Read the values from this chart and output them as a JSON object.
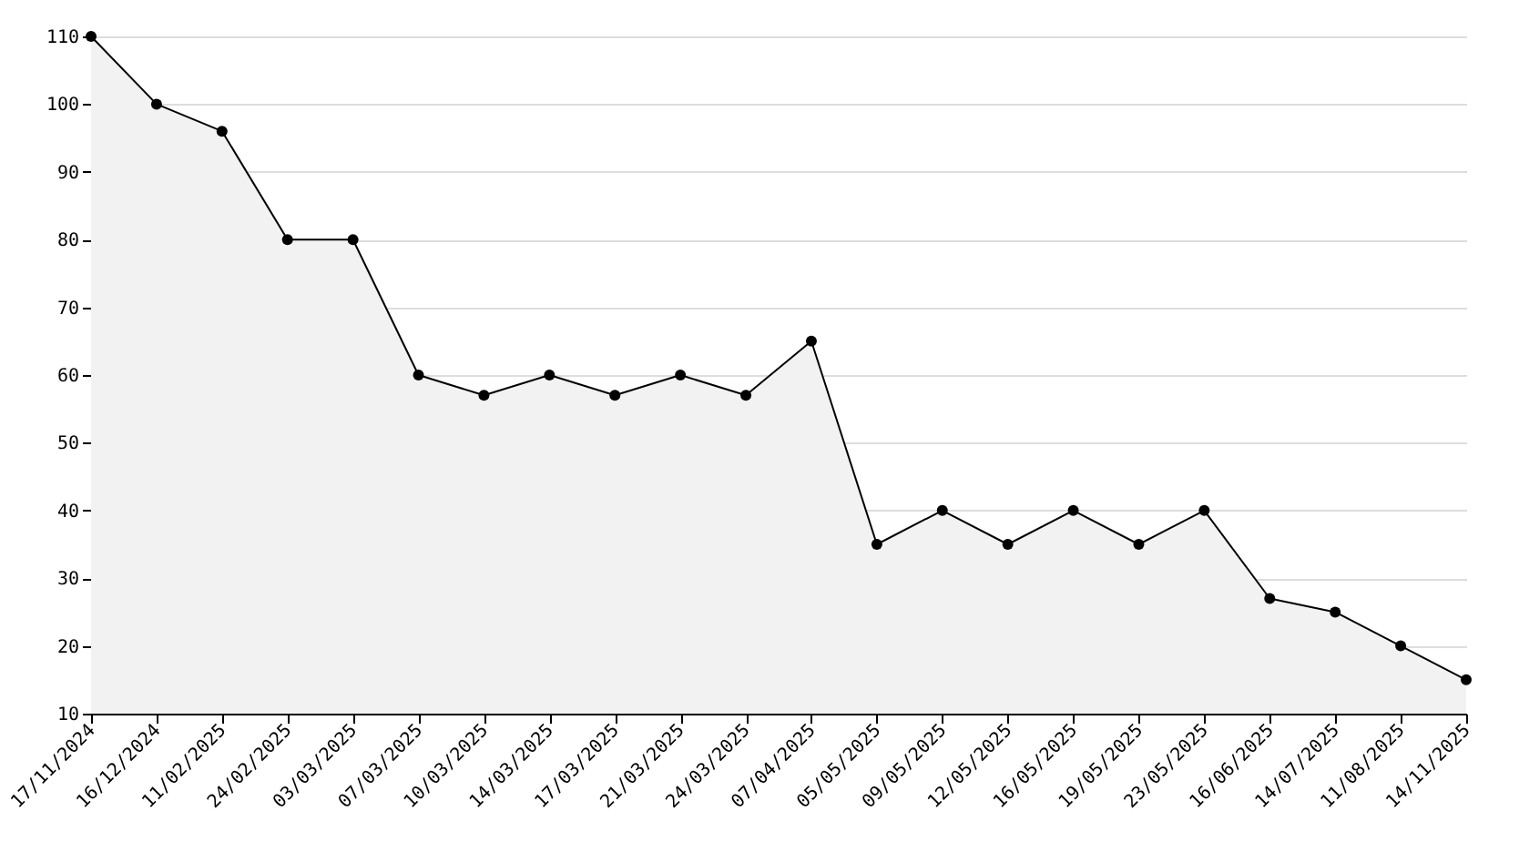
{
  "chart_data": {
    "type": "area",
    "categories": [
      "17/11/2024",
      "16/12/2024",
      "11/02/2025",
      "24/02/2025",
      "03/03/2025",
      "07/03/2025",
      "10/03/2025",
      "14/03/2025",
      "17/03/2025",
      "21/03/2025",
      "24/03/2025",
      "07/04/2025",
      "05/05/2025",
      "09/05/2025",
      "12/05/2025",
      "16/05/2025",
      "19/05/2025",
      "23/05/2025",
      "16/06/2025",
      "14/07/2025",
      "11/08/2025",
      "14/11/2025"
    ],
    "series": [
      {
        "color": "#000000",
        "values": [
          110,
          100,
          96,
          80,
          80,
          60,
          57,
          60,
          57,
          60,
          57,
          65,
          35,
          40,
          35,
          40,
          35,
          40,
          27,
          25,
          20,
          15
        ]
      }
    ],
    "ylim": [
      10,
      110
    ],
    "yticks": [
      10,
      20,
      30,
      40,
      50,
      60,
      70,
      80,
      90,
      100,
      110
    ],
    "grid": "y",
    "marker": "circle",
    "line_style": "solid"
  }
}
